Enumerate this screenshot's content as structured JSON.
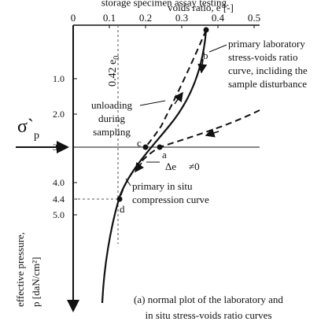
{
  "header_text": "storage specimen assay testing.",
  "x_axis": {
    "label": "voids ratio, e [-]",
    "ticks": [
      "0",
      "0.1",
      "0.2",
      "0.3",
      "0.4",
      "0.5"
    ]
  },
  "y_axis": {
    "label_lines": [
      "effective pressure,",
      "p [daN/cm²]"
    ],
    "ticks": [
      "1.0",
      "2.0",
      "3.0",
      "4.0",
      "4.4",
      "5.0"
    ]
  },
  "sigma_label": "σ`",
  "sigma_sub": "p",
  "e0_label": "0.42 e",
  "e0_sub": "0",
  "points": [
    "a",
    "b",
    "c",
    "d"
  ],
  "delta_e": "Δe",
  "neq_zero": "≠0",
  "lab_curve_lines": [
    "primary laboratory",
    "stress-voids ratio",
    "curve, incliding the",
    "sample disturbance"
  ],
  "unloading_lines": [
    "unloading",
    "during",
    "sampling"
  ],
  "insitu_lines": [
    "primary in situ",
    "compression curve"
  ],
  "caption_lines": [
    "(a)  normal plot of the laboratory and",
    "in situ stress-voids ratio curves"
  ]
}
